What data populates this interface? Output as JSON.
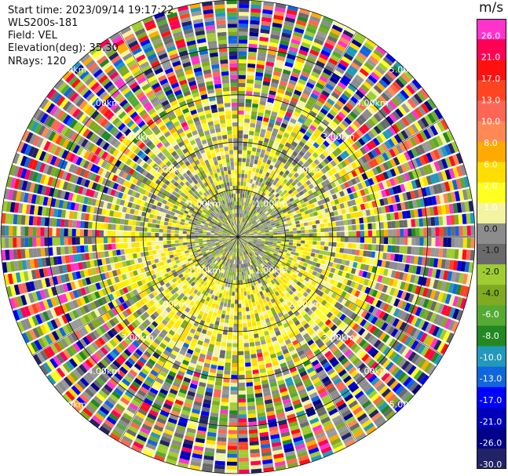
{
  "header": {
    "start_time": "Start time: 2023/09/14 19:17:22",
    "instrument": "WLS200s-181",
    "field": "Field: VEL",
    "elevation": "Elevation(deg): 35.30",
    "nrays": "NRays: 120"
  },
  "chart_data": {
    "type": "heatmap",
    "projection": "polar-ppi",
    "field": "VEL",
    "unit": "m/s",
    "nrays": 120,
    "max_range_km": 5,
    "range_rings_km": [
      1,
      2,
      3,
      4,
      5
    ],
    "range_labels": [
      "1.00km",
      "2.00km",
      "3.00km",
      "4.00km",
      "5.00km"
    ],
    "cross_hairs": true,
    "colorbar": {
      "label": "m/s",
      "ticks": [
        "26.0",
        "21.0",
        "17.0",
        "13.0",
        "10.0",
        "8.0",
        "6.0",
        "2.0",
        "1.0",
        "0.0",
        "-1.0",
        "-2.0",
        "-4.0",
        "-6.0",
        "-8.0",
        "-10.0",
        "-13.0",
        "-17.0",
        "-21.0",
        "-26.0",
        "-30.0"
      ],
      "colors": [
        "#ff33cc",
        "#ff0055",
        "#ff1111",
        "#ff4422",
        "#ff6655",
        "#ff8855",
        "#ffaa00",
        "#ffdd00",
        "#ffff22",
        "#f4f4a0",
        "#8c8c8c",
        "#6a6a6a",
        "#a0cc33",
        "#7faa22",
        "#55aa33",
        "#228822",
        "#2299bb",
        "#1166dd",
        "#0000ff",
        "#0000bb",
        "#000088",
        "#222266"
      ]
    },
    "regions": [
      {
        "range_km": [
          0,
          1
        ],
        "description": "mostly gray / olive near zero"
      },
      {
        "range_km": [
          1,
          2.5
        ],
        "description": "yellow ring, positive small velocities"
      },
      {
        "range_km": [
          2.5,
          5
        ],
        "description": "noisy multicolor"
      }
    ]
  }
}
